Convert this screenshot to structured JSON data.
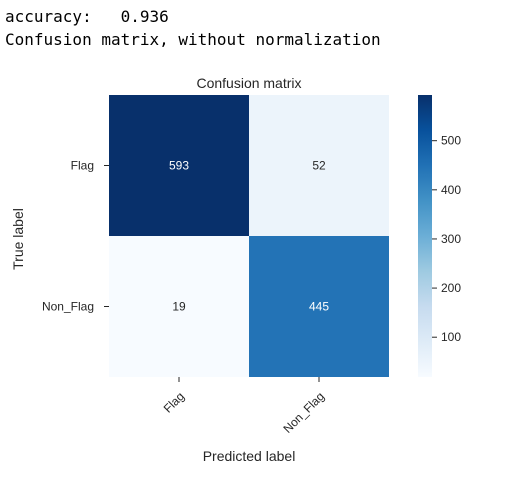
{
  "output": {
    "line1": "accuracy:   0.936",
    "line2": "Confusion matrix, without normalization"
  },
  "chart_data": {
    "type": "heatmap",
    "title": "Confusion matrix",
    "xlabel": "Predicted label",
    "ylabel": "True label",
    "x_categories": [
      "Flag",
      "Non_Flag"
    ],
    "y_categories": [
      "Flag",
      "Non_Flag"
    ],
    "values": [
      [
        593,
        52
      ],
      [
        19,
        445
      ]
    ],
    "colormap": "Blues",
    "colorbar": {
      "min": 19,
      "max": 593,
      "ticks": [
        100,
        200,
        300,
        400,
        500
      ]
    }
  }
}
